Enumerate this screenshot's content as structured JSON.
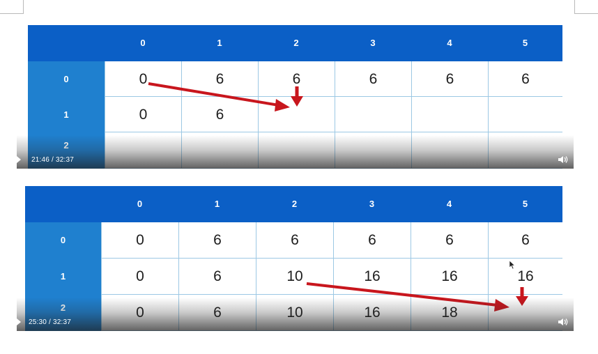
{
  "frame1": {
    "col_headers": [
      "0",
      "1",
      "2",
      "3",
      "4",
      "5"
    ],
    "rows": [
      {
        "label": "0",
        "cells": [
          "0",
          "6",
          "6",
          "6",
          "6",
          "6"
        ]
      },
      {
        "label": "1",
        "cells": [
          "0",
          "6",
          "",
          "",
          "",
          ""
        ]
      },
      {
        "label": "2",
        "cells": [
          "",
          "",
          "",
          "",
          "",
          ""
        ]
      }
    ],
    "player": {
      "time": "21:46 / 32:37",
      "volume_icon": "speaker-icon"
    },
    "arrow_color": "#c8161d"
  },
  "frame2": {
    "col_headers": [
      "0",
      "1",
      "2",
      "3",
      "4",
      "5"
    ],
    "rows": [
      {
        "label": "0",
        "cells": [
          "0",
          "6",
          "6",
          "6",
          "6",
          "6"
        ]
      },
      {
        "label": "1",
        "cells": [
          "0",
          "6",
          "10",
          "16",
          "16",
          "16"
        ]
      },
      {
        "label": "2",
        "cells": [
          "0",
          "6",
          "10",
          "16",
          "18",
          ""
        ]
      }
    ],
    "player": {
      "time": "25:30 / 32:37",
      "volume_icon": "speaker-icon"
    },
    "arrow_color": "#c8161d"
  },
  "colors": {
    "header_blue": "#0b5fc6",
    "row_header_blue": "#1f80cf",
    "grid_line": "#9cc8e4"
  }
}
